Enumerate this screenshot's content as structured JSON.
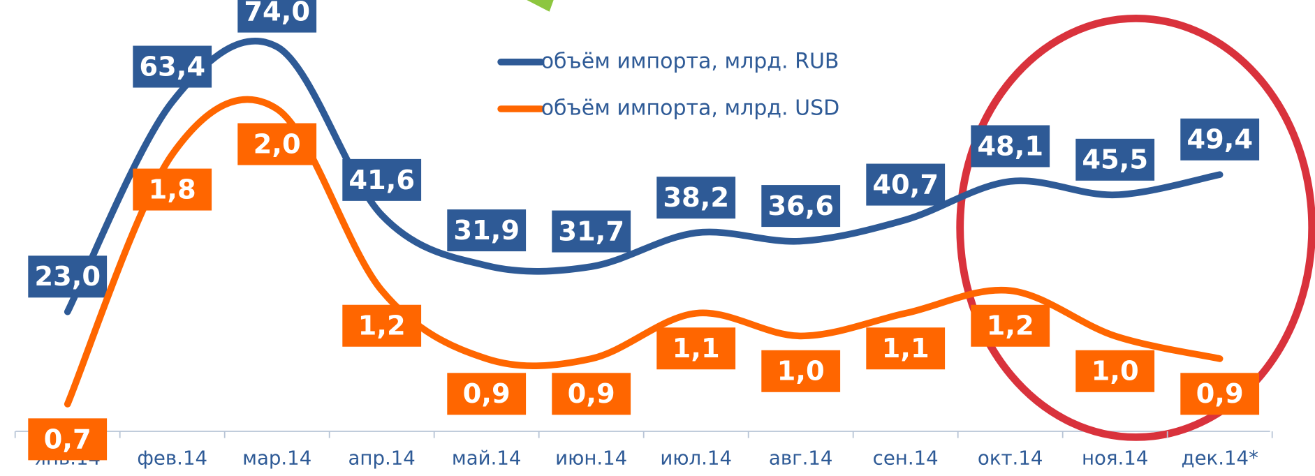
{
  "chart_data": {
    "type": "line",
    "categories": [
      "янв.14",
      "фев.14",
      "мар.14",
      "апр.14",
      "май.14",
      "июн.14",
      "июл.14",
      "авг.14",
      "сен.14",
      "окт.14",
      "ноя.14",
      "дек.14*"
    ],
    "series": [
      {
        "name": "объём импорта, млрд. RUB",
        "color": "#2e5a96",
        "values": [
          23.0,
          63.4,
          74.0,
          41.6,
          31.9,
          31.7,
          38.2,
          36.6,
          40.7,
          48.1,
          45.5,
          49.4
        ],
        "value_labels": [
          "23,0",
          "63,4",
          "74,0",
          "41,6",
          "31,9",
          "31,7",
          "38,2",
          "36,6",
          "40,7",
          "48,1",
          "45,5",
          "49,4"
        ]
      },
      {
        "name": "объём импорта, млрд. USD",
        "color": "#ff6600",
        "axis": "y2",
        "values": [
          0.7,
          1.8,
          2.0,
          1.2,
          0.9,
          0.9,
          1.1,
          1.0,
          1.1,
          1.2,
          1.0,
          0.9
        ],
        "value_labels": [
          "0,7",
          "1,8",
          "2,0",
          "1,2",
          "0,9",
          "0,9",
          "1,1",
          "1,0",
          "1,1",
          "1,2",
          "1,0",
          "0,9"
        ]
      }
    ],
    "ylim": [
      0,
      83
    ],
    "y2lim": [
      0.58,
      2.48
    ],
    "legend": "top"
  }
}
